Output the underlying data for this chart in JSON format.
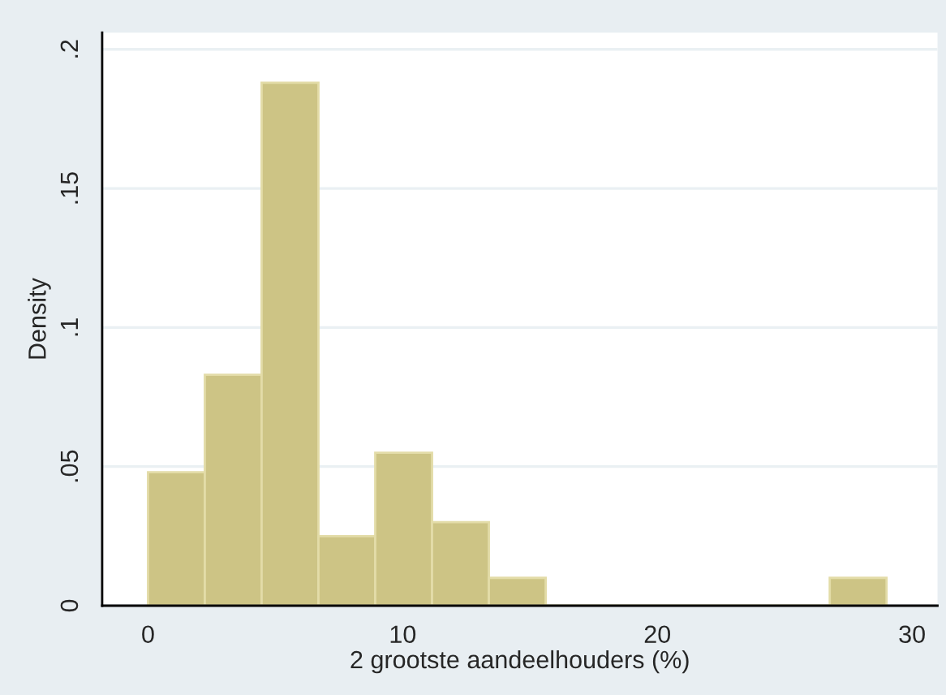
{
  "chart_data": {
    "type": "histogram",
    "xlabel": "2 grootste aandeelhouders (%)",
    "ylabel": "Density",
    "bins": [
      0,
      2.2308,
      4.4615,
      6.6923,
      8.9231,
      11.1538,
      13.3846,
      15.6154,
      17.8462,
      20.0769,
      22.3077,
      24.5385,
      26.7692,
      29
    ],
    "values": [
      0.048,
      0.083,
      0.188,
      0.025,
      0.055,
      0.03,
      0.01,
      0,
      0,
      0,
      0,
      0,
      0.01
    ],
    "color": "#cdc485",
    "xlim": [
      -1.8,
      31
    ],
    "ylim": [
      0,
      0.206
    ],
    "xticks": [
      0,
      10,
      20,
      30
    ],
    "yticks": [
      0,
      {
        "value": 0.05,
        "label": ".05"
      },
      {
        "value": 0.1,
        "label": ".1"
      },
      {
        "value": 0.15,
        "label": ".15"
      },
      {
        "value": 0.2,
        "label": ".2"
      }
    ],
    "grid": "y"
  }
}
